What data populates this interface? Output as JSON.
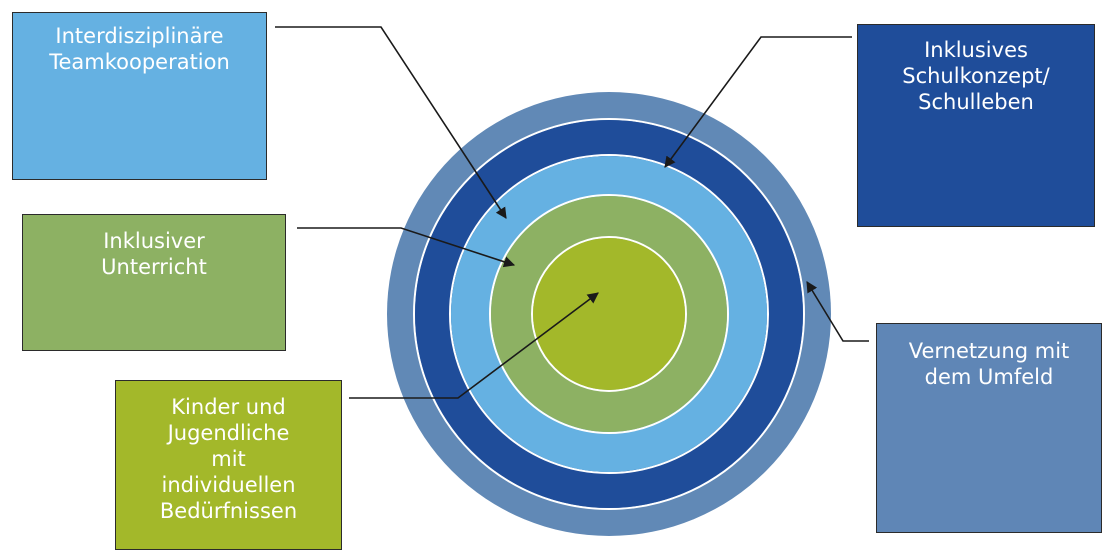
{
  "colors": {
    "ring_outer": "#6189b6",
    "ring_dark_blue": "#1f4d9a",
    "ring_light_blue": "#65b1e2",
    "ring_green": "#8db163",
    "ring_core": "#a3b82a",
    "ring_separator": "#ffffff",
    "arrow": "#1a1a1a"
  },
  "boxes": {
    "team": {
      "lines": [
        "Interdisziplinäre",
        "Teamkooperation"
      ]
    },
    "school": {
      "lines": [
        "Inklusives",
        "Schulkonzept/",
        "Schulleben"
      ]
    },
    "unterricht": {
      "lines": [
        "Inklusiver",
        "Unterricht"
      ]
    },
    "kinder": {
      "lines": [
        "Kinder und",
        "Jugendliche",
        "mit",
        "individuellen",
        "Bedürfnissen"
      ]
    },
    "umfeld": {
      "lines": [
        "Vernetzung mit",
        "dem Umfeld"
      ]
    }
  }
}
